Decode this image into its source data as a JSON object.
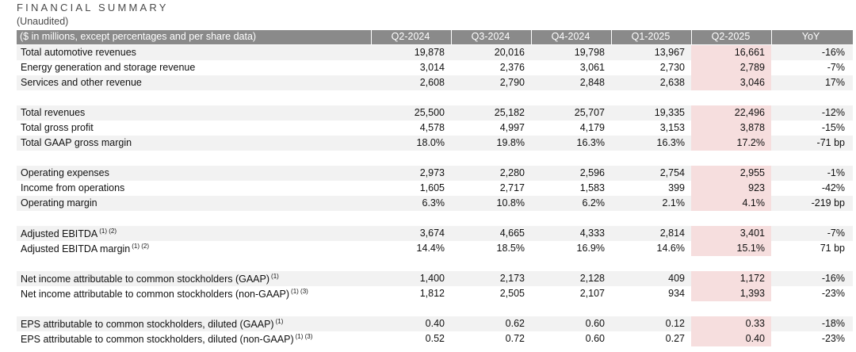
{
  "title": "FINANCIAL SUMMARY",
  "subtitle": "(Unaudited)",
  "header": {
    "label": "($ in millions, except percentages and per share data)",
    "columns": [
      "Q2-2024",
      "Q3-2024",
      "Q4-2024",
      "Q1-2025",
      "Q2-2025",
      "YoY"
    ]
  },
  "groups": [
    {
      "rows": [
        {
          "label": "Total automotive revenues",
          "sup": "",
          "values": [
            "19,878",
            "20,016",
            "19,798",
            "13,967",
            "16,661",
            "-16%"
          ]
        },
        {
          "label": "Energy generation and storage revenue",
          "sup": "",
          "values": [
            "3,014",
            "2,376",
            "3,061",
            "2,730",
            "2,789",
            "-7%"
          ]
        },
        {
          "label": "Services and other revenue",
          "sup": "",
          "values": [
            "2,608",
            "2,790",
            "2,848",
            "2,638",
            "3,046",
            "17%"
          ]
        }
      ]
    },
    {
      "rows": [
        {
          "label": "Total revenues",
          "sup": "",
          "values": [
            "25,500",
            "25,182",
            "25,707",
            "19,335",
            "22,496",
            "-12%"
          ]
        },
        {
          "label": "Total gross profit",
          "sup": "",
          "values": [
            "4,578",
            "4,997",
            "4,179",
            "3,153",
            "3,878",
            "-15%"
          ]
        },
        {
          "label": "Total GAAP gross margin",
          "sup": "",
          "values": [
            "18.0%",
            "19.8%",
            "16.3%",
            "16.3%",
            "17.2%",
            "-71 bp"
          ]
        }
      ]
    },
    {
      "rows": [
        {
          "label": "Operating expenses",
          "sup": "",
          "values": [
            "2,973",
            "2,280",
            "2,596",
            "2,754",
            "2,955",
            "-1%"
          ]
        },
        {
          "label": "Income from operations",
          "sup": "",
          "values": [
            "1,605",
            "2,717",
            "1,583",
            "399",
            "923",
            "-42%"
          ]
        },
        {
          "label": "Operating margin",
          "sup": "",
          "values": [
            "6.3%",
            "10.8%",
            "6.2%",
            "2.1%",
            "4.1%",
            "-219 bp"
          ]
        }
      ]
    },
    {
      "rows": [
        {
          "label": "Adjusted EBITDA",
          "sup": "(1) (2)",
          "values": [
            "3,674",
            "4,665",
            "4,333",
            "2,814",
            "3,401",
            "-7%"
          ]
        },
        {
          "label": "Adjusted EBITDA margin",
          "sup": "(1) (2)",
          "values": [
            "14.4%",
            "18.5%",
            "16.9%",
            "14.6%",
            "15.1%",
            "71 bp"
          ]
        }
      ]
    },
    {
      "rows": [
        {
          "label": "Net income attributable to common stockholders (GAAP)",
          "sup": "(1)",
          "values": [
            "1,400",
            "2,173",
            "2,128",
            "409",
            "1,172",
            "-16%"
          ]
        },
        {
          "label": "Net income attributable to common stockholders (non-GAAP)",
          "sup": "(1) (3)",
          "values": [
            "1,812",
            "2,505",
            "2,107",
            "934",
            "1,393",
            "-23%"
          ]
        }
      ]
    },
    {
      "rows": [
        {
          "label": "EPS attributable to common stockholders, diluted (GAAP)",
          "sup": "(1)",
          "values": [
            "0.40",
            "0.62",
            "0.60",
            "0.12",
            "0.33",
            "-18%"
          ]
        },
        {
          "label": "EPS attributable to common stockholders, diluted (non-GAAP)",
          "sup": "(1) (3)",
          "values": [
            "0.52",
            "0.72",
            "0.60",
            "0.27",
            "0.40",
            "-23%"
          ]
        }
      ]
    }
  ],
  "colors": {
    "header_bg": "#8a8a8a",
    "row_shade": "#f2f2f2",
    "highlight_q2_2025": "#f6dede"
  }
}
